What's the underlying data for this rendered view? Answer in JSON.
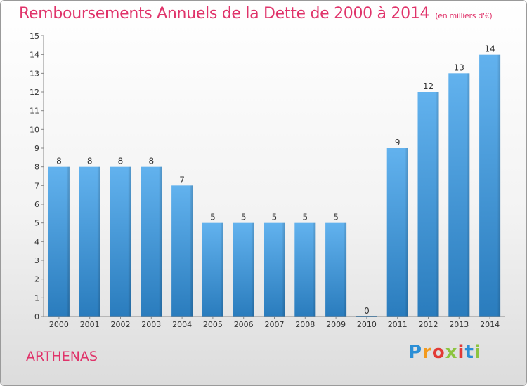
{
  "header": {
    "title": "Remboursements Annuels de la Dette de 2000 à 2014",
    "unit": "(en milliers d'€)"
  },
  "footer": {
    "place": "ARTHENAS",
    "brand": "Proxiti",
    "brand_letters": [
      "P",
      "r",
      "o",
      "x",
      "i",
      "t",
      "i"
    ]
  },
  "colors": {
    "title": "#e0336a",
    "bar_top": "#62b2ee",
    "bar_bottom": "#2a7cbd"
  },
  "chart_data": {
    "type": "bar",
    "categories": [
      "2000",
      "2001",
      "2002",
      "2003",
      "2004",
      "2005",
      "2006",
      "2007",
      "2008",
      "2009",
      "2010",
      "2011",
      "2012",
      "2013",
      "2014"
    ],
    "values": [
      8,
      8,
      8,
      8,
      7,
      5,
      5,
      5,
      5,
      5,
      0,
      9,
      12,
      13,
      14
    ],
    "value_labels": [
      "8",
      "8",
      "8",
      "8",
      "7",
      "5",
      "5",
      "5",
      "5",
      "5",
      "0",
      "9",
      "12",
      "13",
      "14"
    ],
    "y_ticks": [
      "0",
      "1",
      "2",
      "3",
      "4",
      "5",
      "6",
      "7",
      "8",
      "9",
      "10",
      "11",
      "12",
      "13",
      "14",
      "15"
    ],
    "ylim": [
      0,
      15
    ],
    "grid": false
  }
}
